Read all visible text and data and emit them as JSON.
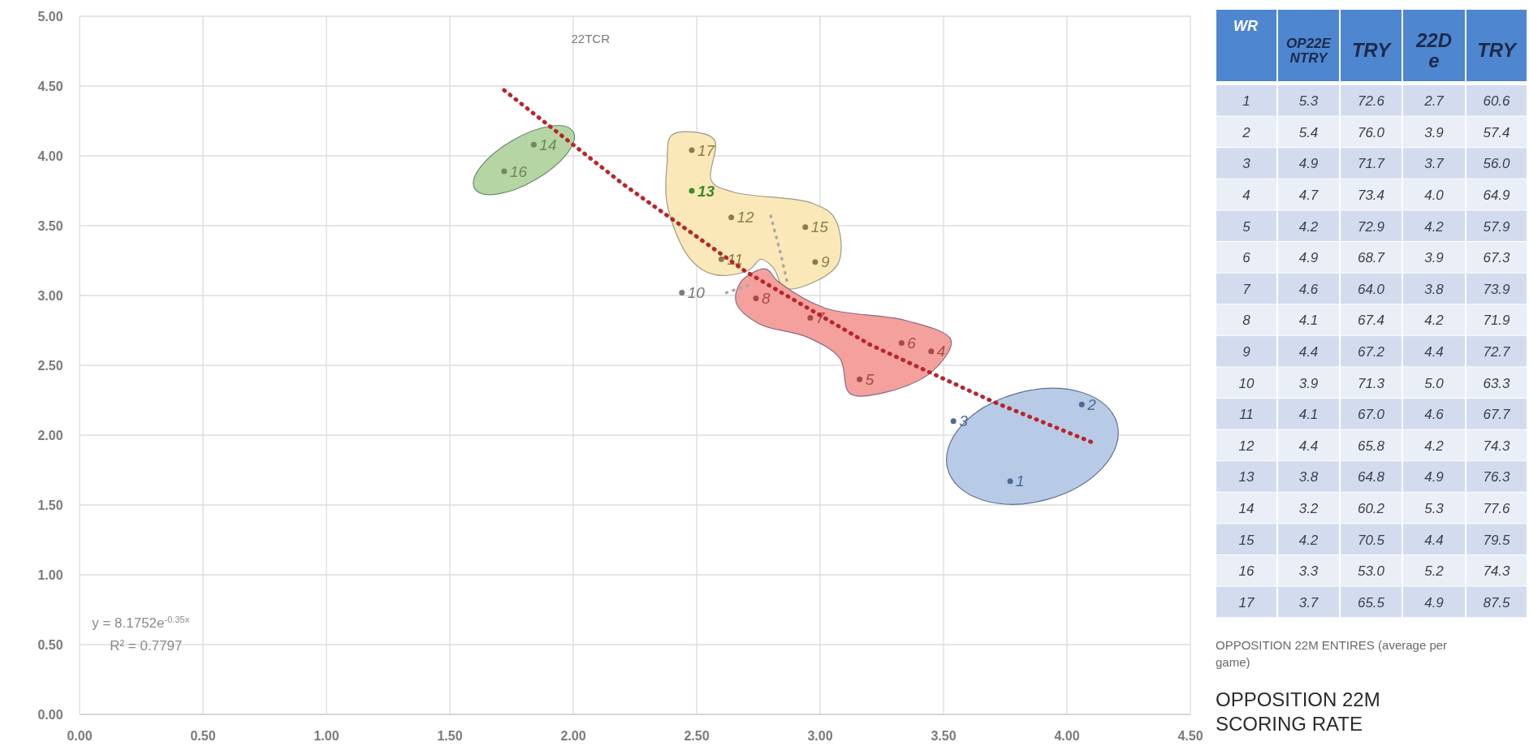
{
  "chart_data": [
    {
      "type": "scatter",
      "title": "22TCR",
      "xlabel": "OPPOSITION 22M ENTIRES (average per game)",
      "ylabel": "OPPOSITION 22M SCORING RATE",
      "annotations": [
        "y = 8.1752e$^{-0.35x}$",
        "R² = 0.7797"
      ],
      "xlim": [
        0,
        4.5
      ],
      "ylim": [
        0,
        5
      ],
      "xticks": [
        {
          "value": 0,
          "label": "0.00"
        },
        {
          "value": 0.5,
          "label": "0.50"
        },
        {
          "value": 1,
          "label": "1.00"
        },
        {
          "value": 1.5,
          "label": "1.50"
        },
        {
          "value": 2,
          "label": "2.00"
        },
        {
          "value": 2.5,
          "label": "2.50"
        },
        {
          "value": 3,
          "label": "3.00"
        },
        {
          "value": 3.5,
          "label": "3.50"
        },
        {
          "value": 4,
          "label": "4.00"
        },
        {
          "value": 4.5,
          "label": "4.50"
        }
      ],
      "yticks": [
        {
          "value": 0,
          "label": "0.00"
        },
        {
          "value": 0.5,
          "label": "0.50"
        },
        {
          "value": 1,
          "label": "1.00"
        },
        {
          "value": 1.5,
          "label": "1.50"
        },
        {
          "value": 2,
          "label": "2.00"
        },
        {
          "value": 2.5,
          "label": "2.50"
        },
        {
          "value": 3,
          "label": "3.00"
        },
        {
          "value": 3.5,
          "label": "3.50"
        },
        {
          "value": 4,
          "label": "4.00"
        },
        {
          "value": 4.5,
          "label": "4.50"
        },
        {
          "value": 5,
          "label": "5.00"
        }
      ],
      "grid": true,
      "series": [
        {
          "type": "scatter",
          "marker": "circle",
          "name": "1",
          "color": "#4d6a96",
          "x": [
            3.77
          ],
          "values": [
            1.67
          ]
        },
        {
          "type": "scatter",
          "marker": "circle",
          "name": "2",
          "color": "#4d6a96",
          "x": [
            4.06
          ],
          "values": [
            2.22
          ]
        },
        {
          "type": "scatter",
          "marker": "circle",
          "name": "3",
          "color": "#4d6a96",
          "x": [
            3.54
          ],
          "values": [
            2.1
          ]
        },
        {
          "type": "scatter",
          "marker": "circle",
          "name": "4",
          "color": "#a84a44",
          "x": [
            3.45
          ],
          "values": [
            2.6
          ]
        },
        {
          "type": "scatter",
          "marker": "circle",
          "name": "5",
          "color": "#a84a44",
          "x": [
            3.16
          ],
          "values": [
            2.4
          ]
        },
        {
          "type": "scatter",
          "marker": "circle",
          "name": "6",
          "color": "#a84a44",
          "x": [
            3.33
          ],
          "values": [
            2.66
          ]
        },
        {
          "type": "scatter",
          "marker": "circle",
          "name": "7",
          "color": "#a84a44",
          "x": [
            2.96
          ],
          "values": [
            2.84
          ]
        },
        {
          "type": "scatter",
          "marker": "circle",
          "name": "8",
          "color": "#a84a44",
          "x": [
            2.74
          ],
          "values": [
            2.98
          ]
        },
        {
          "type": "scatter",
          "marker": "circle",
          "name": "9",
          "color": "#8c7d48",
          "x": [
            2.98
          ],
          "values": [
            3.24
          ]
        },
        {
          "type": "scatter",
          "marker": "circle",
          "name": "10",
          "color": "#7a7a7a",
          "x": [
            2.44
          ],
          "values": [
            3.02
          ]
        },
        {
          "type": "scatter",
          "marker": "circle",
          "name": "11",
          "color": "#8c7d48",
          "x": [
            2.6
          ],
          "values": [
            3.26
          ]
        },
        {
          "type": "scatter",
          "marker": "circle",
          "name": "12",
          "color": "#8c7d48",
          "x": [
            2.64
          ],
          "values": [
            3.56
          ]
        },
        {
          "type": "scatter",
          "marker": "circle",
          "name": "13",
          "color": "#3b8a2a",
          "x": [
            2.48
          ],
          "values": [
            3.75
          ]
        },
        {
          "type": "scatter",
          "marker": "circle",
          "name": "14",
          "color": "#6e8a5a",
          "x": [
            1.84
          ],
          "values": [
            4.08
          ]
        },
        {
          "type": "scatter",
          "marker": "circle",
          "name": "15",
          "color": "#8c7d48",
          "x": [
            2.94
          ],
          "values": [
            3.49
          ]
        },
        {
          "type": "scatter",
          "marker": "circle",
          "name": "16",
          "color": "#6e8a5a",
          "x": [
            1.72
          ],
          "values": [
            3.89
          ]
        },
        {
          "type": "scatter",
          "marker": "circle",
          "name": "17",
          "color": "#8c7d48",
          "x": [
            2.48
          ],
          "values": [
            4.04
          ]
        },
        {
          "type": "line",
          "x": [
            1.72,
            2.2,
            2.7,
            3.2,
            3.7,
            4.1
          ],
          "values": [
            4.47,
            3.8,
            3.17,
            2.65,
            2.24,
            1.95
          ],
          "color": "#b8262c",
          "line_style": "dotted"
        },
        {
          "type": "line",
          "x": [
            2.62,
            2.72
          ],
          "values": [
            3.02,
            3.08
          ],
          "color": "#a8a8a8",
          "line_style": "dotted"
        },
        {
          "type": "line",
          "x": [
            2.8,
            2.84,
            2.87
          ],
          "values": [
            3.57,
            3.3,
            3.07
          ],
          "color": "#a8a8a8",
          "line_style": "dotted"
        }
      ]
    },
    {
      "type": "heatmap",
      "ylabel": "WR",
      "categories": [
        "OP22E NTRY",
        "TRY",
        "22D e",
        "TRY"
      ],
      "y_categories": [
        "1",
        "2",
        "3",
        "4",
        "5",
        "6",
        "7",
        "8",
        "9",
        "10",
        "11",
        "12",
        "13",
        "14",
        "15",
        "16",
        "17"
      ],
      "cell_labels": [
        [
          "5.3",
          "72.6",
          "2.7",
          "60.6"
        ],
        [
          "5.4",
          "76.0",
          "3.9",
          "57.4"
        ],
        [
          "4.9",
          "71.7",
          "3.7",
          "56.0"
        ],
        [
          "4.7",
          "73.4",
          "4.0",
          "64.9"
        ],
        [
          "4.2",
          "72.9",
          "4.2",
          "57.9"
        ],
        [
          "4.9",
          "68.7",
          "3.9",
          "67.3"
        ],
        [
          "4.6",
          "64.0",
          "3.8",
          "73.9"
        ],
        [
          "4.1",
          "67.4",
          "4.2",
          "71.9"
        ],
        [
          "4.4",
          "67.2",
          "4.4",
          "72.7"
        ],
        [
          "3.9",
          "71.3",
          "5.0",
          "63.3"
        ],
        [
          "4.1",
          "67.0",
          "4.6",
          "67.7"
        ],
        [
          "4.4",
          "65.8",
          "4.2",
          "74.3"
        ],
        [
          "3.8",
          "64.8",
          "4.9",
          "76.3"
        ],
        [
          "3.2",
          "60.2",
          "5.3",
          "77.6"
        ],
        [
          "4.2",
          "70.5",
          "4.4",
          "79.5"
        ],
        [
          "3.3",
          "53.0",
          "5.2",
          "74.3"
        ],
        [
          "3.7",
          "65.5",
          "4.9",
          "87.5"
        ]
      ],
      "cells": [
        [
          5.3,
          72.6,
          2.7,
          60.6
        ],
        [
          5.4,
          76.0,
          3.9,
          57.4
        ],
        [
          4.9,
          71.7,
          3.7,
          56.0
        ],
        [
          4.7,
          73.4,
          4.0,
          64.9
        ],
        [
          4.2,
          72.9,
          4.2,
          57.9
        ],
        [
          4.9,
          68.7,
          3.9,
          67.3
        ],
        [
          4.6,
          64.0,
          3.8,
          73.9
        ],
        [
          4.1,
          67.4,
          4.2,
          71.9
        ],
        [
          4.4,
          67.2,
          4.4,
          72.7
        ],
        [
          3.9,
          71.3,
          5.0,
          63.3
        ],
        [
          4.1,
          67.0,
          4.6,
          67.7
        ],
        [
          4.4,
          65.8,
          4.2,
          74.3
        ],
        [
          3.8,
          64.8,
          4.9,
          76.3
        ],
        [
          3.2,
          60.2,
          5.3,
          77.6
        ],
        [
          4.2,
          70.5,
          4.4,
          79.5
        ],
        [
          3.3,
          53.0,
          5.2,
          74.3
        ],
        [
          3.7,
          65.5,
          4.9,
          87.5
        ]
      ]
    }
  ]
}
